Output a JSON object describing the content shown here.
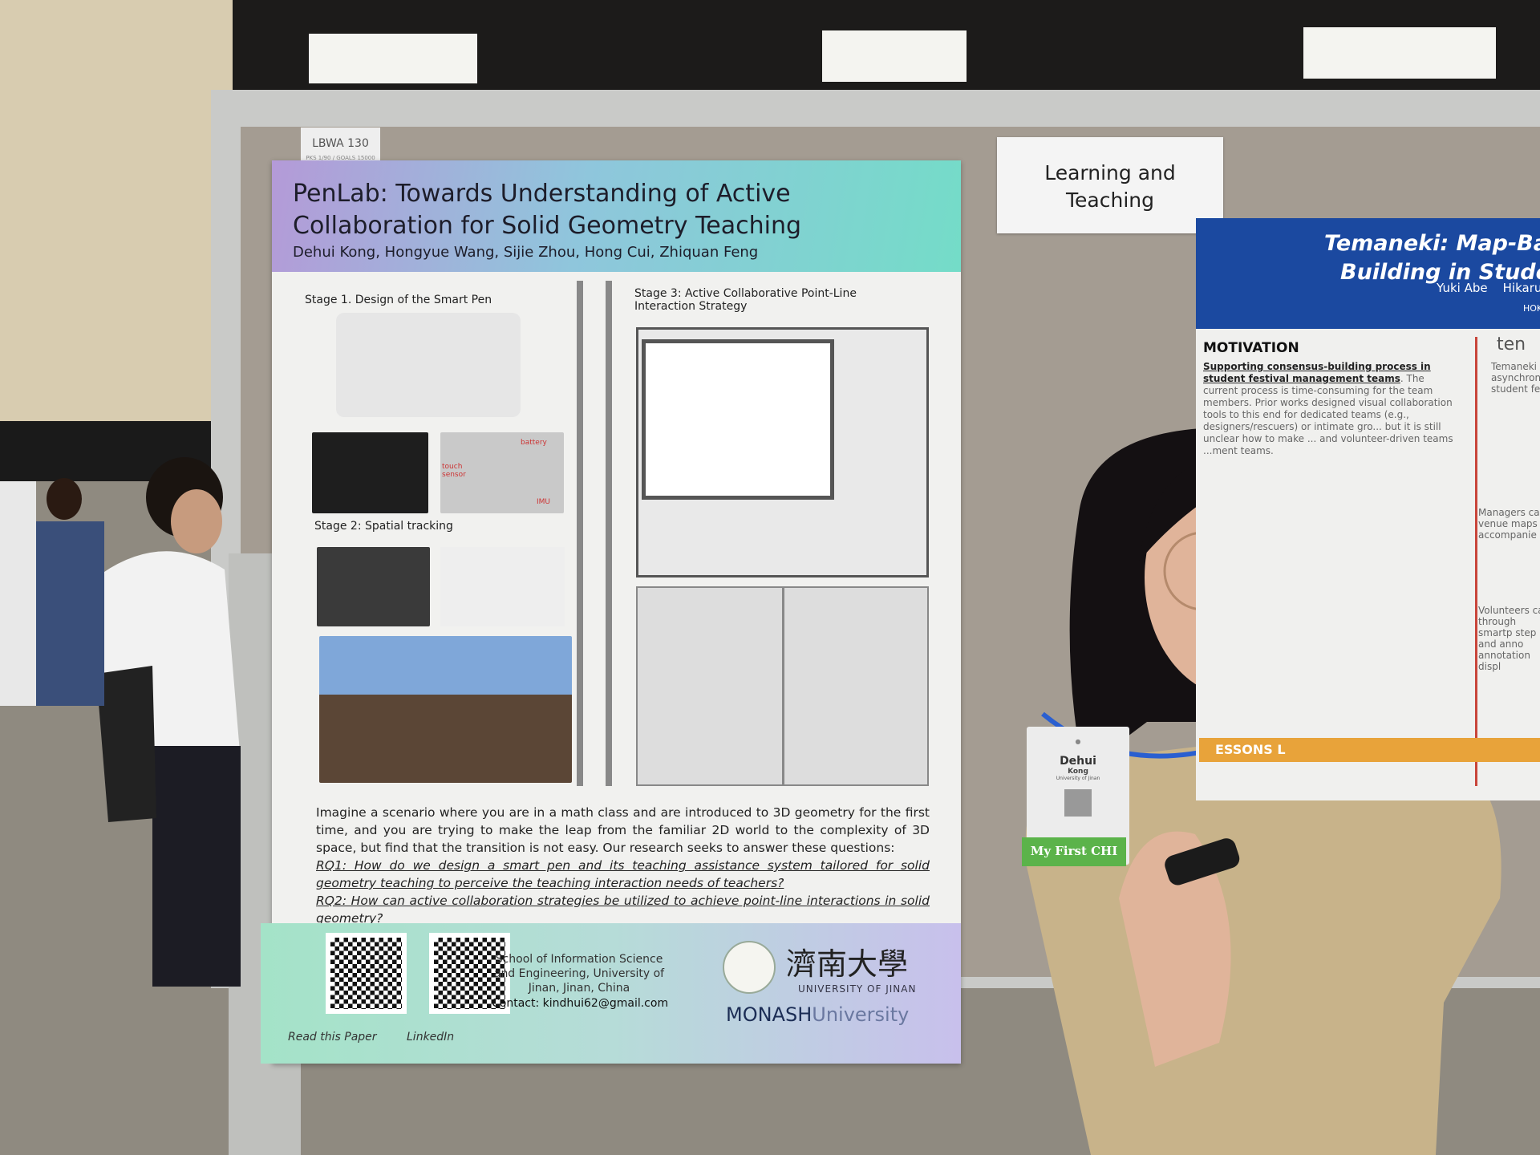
{
  "poster": {
    "tag": {
      "id": "LBWA 130",
      "fine": "PKS 1/90 / GOALS 15000"
    },
    "title": "PenLab: Towards Understanding of Active Collaboration for Solid Geometry Teaching",
    "authors": "Dehui Kong, Hongyue Wang, Sijie Zhou, Hong Cui, Zhiquan Feng",
    "stage1": "Stage 1. Design of the Smart Pen",
    "stage2": "Stage 2: Spatial tracking",
    "stage3": "Stage 3: Active Collaborative Point-Line Interaction Strategy",
    "pen_labels": {
      "battery": "battery",
      "touch": "touch sensor",
      "imu": "IMU"
    },
    "intro": "Imagine a scenario where you are in a math class and are introduced to 3D geometry for the first time, and you are trying to make the leap from the familiar 2D world to the complexity of 3D space, but find that the transition is not easy. Our research seeks to answer these questions:",
    "rq1": "RQ1: How do we design a smart pen and its teaching assistance system tailored for solid geometry teaching to perceive the teaching interaction needs of teachers?",
    "rq2": "RQ2: How can active collaboration strategies be utilized to achieve point-line interactions in solid geometry?",
    "qr1_label": "Read this Paper",
    "qr2_label": "LinkedIn",
    "affiliation": "School of Information Science and Engineering, University of Jinan, Jinan, China",
    "contact": "Contact: kindhui62@gmail.com",
    "uni_cn": "濟南大學",
    "uni_en": "UNIVERSITY OF JINAN",
    "monash": "MONASH",
    "monash_suffix": "University"
  },
  "sign": {
    "line1": "Learning and",
    "line2": "Teaching"
  },
  "right_poster": {
    "title1": "Temaneki: Map-Base",
    "title2": "Building in Student",
    "authors": "Yuki Abe    Hikaru",
    "inst": "HOK",
    "motivation": "MOTIVATION",
    "motivation_bold": "Supporting consensus-building process in student festival management teams",
    "motivation_text": ". The current process is time-consuming for the team members. Prior works designed visual collaboration tools to this end for dedicated teams (e.g., designers/rescuers) or intimate gro... but it is still unclear how to make ... and volunteer-driven teams ...ment teams.",
    "col2_head": "ten",
    "col2_text": "Temaneki asynchron student fes",
    "managers": "Managers ca venue maps accompanie",
    "volunteers": "Volunteers ca through smartp step and anno annotation displ",
    "lessons": "ESSONS L"
  },
  "badge": {
    "first": "Dehui",
    "last": "Kong",
    "org": "University of Jinan",
    "ribbon": "My First CHI"
  },
  "colors": {
    "header_gradient_start": "#b49ad8",
    "header_gradient_end": "#74dcc8",
    "right_poster_blue": "#1b49a0",
    "ribbon_green": "#5bb34a",
    "board": "#a49c92"
  }
}
